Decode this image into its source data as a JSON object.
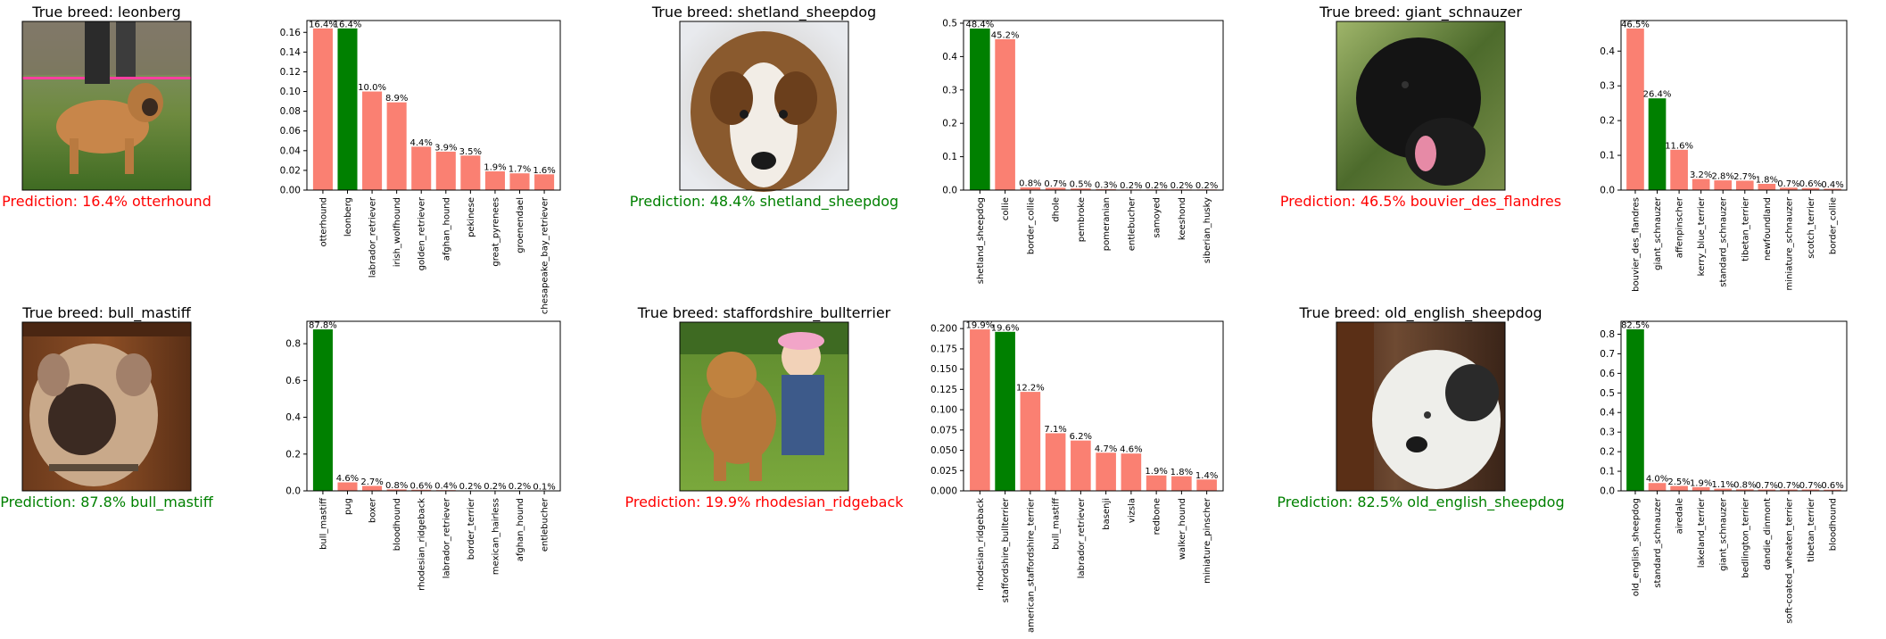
{
  "title_prefix": "True breed: ",
  "pred_prefix": "Prediction: ",
  "colors": {
    "correct": "#008000",
    "wrong": "#fa8072",
    "pred_wrong_text": "#ff0000",
    "pred_right_text": "#008000"
  },
  "panels": [
    {
      "true_breed": "leonberg",
      "prediction_text": "16.4% otterhound",
      "prediction_correct": false,
      "photo_desc": "leonberger dog outdoors on grass",
      "chart_data": {
        "type": "bar",
        "categories": [
          "otterhound",
          "leonberg",
          "labrador_retriever",
          "irish_wolfhound",
          "golden_retriever",
          "afghan_hound",
          "pekinese",
          "great_pyrenees",
          "groenendael",
          "chesapeake_bay_retriever"
        ],
        "values": [
          0.164,
          0.164,
          0.1,
          0.089,
          0.044,
          0.039,
          0.035,
          0.019,
          0.017,
          0.016
        ],
        "labels": [
          "16.4%",
          "16.4%",
          "10.0%",
          "8.9%",
          "4.4%",
          "3.9%",
          "3.5%",
          "1.9%",
          "1.7%",
          "1.6%"
        ],
        "ylim": [
          0,
          0.172
        ],
        "yticks": [
          0.0,
          0.02,
          0.04,
          0.06,
          0.08,
          0.1,
          0.12,
          0.14,
          0.16
        ],
        "ytick_labels": [
          "0.00",
          "0.02",
          "0.04",
          "0.06",
          "0.08",
          "0.10",
          "0.12",
          "0.14",
          "0.16"
        ],
        "correct_index": 1
      }
    },
    {
      "true_breed": "shetland_sheepdog",
      "prediction_text": "48.4% shetland_sheepdog",
      "prediction_correct": true,
      "photo_desc": "sheltie portrait",
      "chart_data": {
        "type": "bar",
        "categories": [
          "shetland_sheepdog",
          "collie",
          "border_collie",
          "dhole",
          "pembroke",
          "pomeranian",
          "entlebucher",
          "samoyed",
          "keeshond",
          "siberian_husky"
        ],
        "values": [
          0.484,
          0.452,
          0.008,
          0.007,
          0.005,
          0.003,
          0.002,
          0.002,
          0.002,
          0.002
        ],
        "labels": [
          "48.4%",
          "45.2%",
          "0.8%",
          "0.7%",
          "0.5%",
          "0.3%",
          "0.2%",
          "0.2%",
          "0.2%",
          "0.2%"
        ],
        "ylim": [
          0,
          0.508
        ],
        "yticks": [
          0.0,
          0.1,
          0.2,
          0.3,
          0.4,
          0.5
        ],
        "ytick_labels": [
          "0.0",
          "0.1",
          "0.2",
          "0.3",
          "0.4",
          "0.5"
        ],
        "correct_index": 0
      }
    },
    {
      "true_breed": "giant_schnauzer",
      "prediction_text": "46.5% bouvier_des_flandres",
      "prediction_correct": false,
      "photo_desc": "black dog among leaves",
      "chart_data": {
        "type": "bar",
        "categories": [
          "bouvier_des_flandres",
          "giant_schnauzer",
          "affenpinscher",
          "kerry_blue_terrier",
          "standard_schnauzer",
          "tibetan_terrier",
          "newfoundland",
          "miniature_schnauzer",
          "scotch_terrier",
          "border_collie"
        ],
        "values": [
          0.465,
          0.264,
          0.116,
          0.032,
          0.028,
          0.027,
          0.018,
          0.007,
          0.006,
          0.004
        ],
        "labels": [
          "46.5%",
          "26.4%",
          "11.6%",
          "3.2%",
          "2.8%",
          "2.7%",
          "1.8%",
          "0.7%",
          "0.6%",
          "0.4%"
        ],
        "ylim": [
          0,
          0.488
        ],
        "yticks": [
          0.0,
          0.1,
          0.2,
          0.3,
          0.4
        ],
        "ytick_labels": [
          "0.0",
          "0.1",
          "0.2",
          "0.3",
          "0.4"
        ],
        "correct_index": 1
      }
    },
    {
      "true_breed": "bull_mastiff",
      "prediction_text": "87.8% bull_mastiff",
      "prediction_correct": true,
      "photo_desc": "bull mastiff portrait",
      "chart_data": {
        "type": "bar",
        "categories": [
          "bull_mastiff",
          "pug",
          "boxer",
          "bloodhound",
          "rhodesian_ridgeback",
          "labrador_retriever",
          "border_terrier",
          "mexican_hairless",
          "afghan_hound",
          "entlebucher"
        ],
        "values": [
          0.878,
          0.046,
          0.027,
          0.008,
          0.006,
          0.004,
          0.002,
          0.002,
          0.002,
          0.001
        ],
        "labels": [
          "87.8%",
          "4.6%",
          "2.7%",
          "0.8%",
          "0.6%",
          "0.4%",
          "0.2%",
          "0.2%",
          "0.2%",
          "0.1%"
        ],
        "ylim": [
          0,
          0.922
        ],
        "yticks": [
          0.0,
          0.2,
          0.4,
          0.6,
          0.8
        ],
        "ytick_labels": [
          "0.0",
          "0.2",
          "0.4",
          "0.6",
          "0.8"
        ],
        "correct_index": 0
      }
    },
    {
      "true_breed": "staffordshire_bullterrier",
      "prediction_text": "19.9% rhodesian_ridgeback",
      "prediction_correct": false,
      "photo_desc": "dog with girl on grass",
      "chart_data": {
        "type": "bar",
        "categories": [
          "rhodesian_ridgeback",
          "staffordshire_bullterrier",
          "american_staffordshire_terrier",
          "bull_mastiff",
          "labrador_retriever",
          "basenji",
          "vizsla",
          "redbone",
          "walker_hound",
          "miniature_pinscher"
        ],
        "values": [
          0.199,
          0.196,
          0.122,
          0.071,
          0.062,
          0.047,
          0.046,
          0.019,
          0.018,
          0.014
        ],
        "labels": [
          "19.9%",
          "19.6%",
          "12.2%",
          "7.1%",
          "6.2%",
          "4.7%",
          "4.6%",
          "1.9%",
          "1.8%",
          "1.4%"
        ],
        "ylim": [
          0,
          0.209
        ],
        "yticks": [
          0.0,
          0.025,
          0.05,
          0.075,
          0.1,
          0.125,
          0.15,
          0.175,
          0.2
        ],
        "ytick_labels": [
          "0.000",
          "0.025",
          "0.050",
          "0.075",
          "0.100",
          "0.125",
          "0.150",
          "0.175",
          "0.200"
        ],
        "correct_index": 1
      }
    },
    {
      "true_breed": "old_english_sheepdog",
      "prediction_text": "82.5% old_english_sheepdog",
      "prediction_correct": true,
      "photo_desc": "white and black sheepdog indoors",
      "chart_data": {
        "type": "bar",
        "categories": [
          "old_english_sheepdog",
          "standard_schnauzer",
          "airedale",
          "lakeland_terrier",
          "giant_schnauzer",
          "bedlington_terrier",
          "dandie_dinmont",
          "soft-coated_wheaten_terrier",
          "tibetan_terrier",
          "bloodhound"
        ],
        "values": [
          0.825,
          0.04,
          0.025,
          0.019,
          0.011,
          0.008,
          0.007,
          0.007,
          0.007,
          0.006
        ],
        "labels": [
          "82.5%",
          "4.0%",
          "2.5%",
          "1.9%",
          "1.1%",
          "0.8%",
          "0.7%",
          "0.7%",
          "0.7%",
          "0.6%"
        ],
        "ylim": [
          0,
          0.866
        ],
        "yticks": [
          0.0,
          0.1,
          0.2,
          0.3,
          0.4,
          0.5,
          0.6,
          0.7,
          0.8
        ],
        "ytick_labels": [
          "0.0",
          "0.1",
          "0.2",
          "0.3",
          "0.4",
          "0.5",
          "0.6",
          "0.7",
          "0.8"
        ],
        "correct_index": 0
      }
    }
  ]
}
